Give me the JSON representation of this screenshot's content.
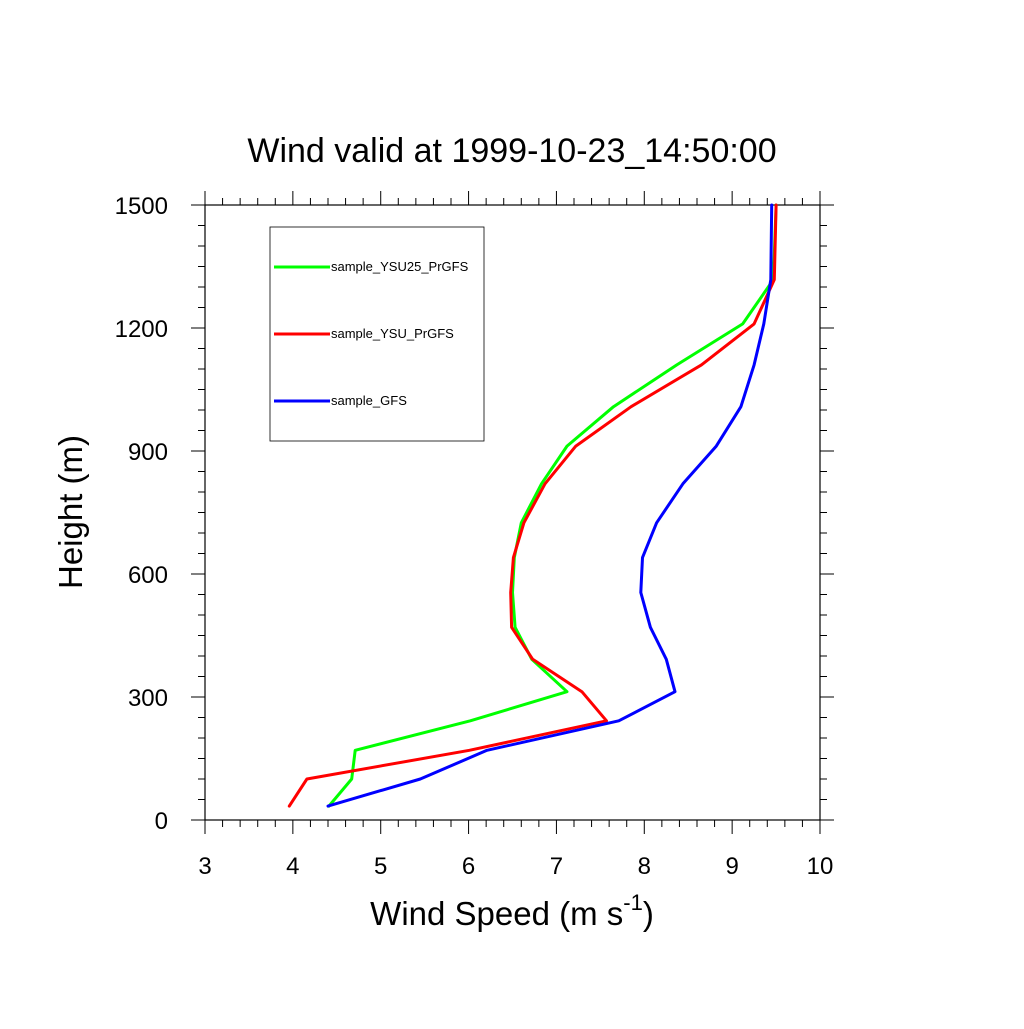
{
  "chart_data": {
    "type": "line",
    "title": "Wind valid at 1999-10-23_14:50:00",
    "xlabel": "Wind Speed (m s",
    "xlabel_exponent": "-1",
    "xlabel_suffix": ")",
    "ylabel": "Height (m)",
    "xlim": [
      3,
      10
    ],
    "ylim": [
      0,
      1500
    ],
    "x_ticks": [
      3,
      4,
      5,
      6,
      7,
      8,
      9,
      10
    ],
    "x_tick_labels": [
      "3",
      "4",
      "5",
      "6",
      "7",
      "8",
      "9",
      "10"
    ],
    "y_ticks": [
      0,
      300,
      600,
      900,
      1200,
      1500
    ],
    "y_tick_labels": [
      "0",
      "300",
      "600",
      "900",
      "1200",
      "1500"
    ],
    "grid": false,
    "legend_position": "top-left",
    "series": [
      {
        "name": "sample_YSU25_PrGFS",
        "color": "#00ff00",
        "points": [
          [
            4.41,
            34
          ],
          [
            4.67,
            100
          ],
          [
            4.71,
            170
          ],
          [
            6.02,
            242
          ],
          [
            7.12,
            313
          ],
          [
            6.72,
            392
          ],
          [
            6.53,
            470
          ],
          [
            6.5,
            555
          ],
          [
            6.52,
            640
          ],
          [
            6.6,
            725
          ],
          [
            6.83,
            820
          ],
          [
            7.12,
            912
          ],
          [
            7.65,
            1008
          ],
          [
            8.37,
            1110
          ],
          [
            9.12,
            1210
          ],
          [
            9.47,
            1318
          ],
          [
            9.5,
            1500
          ]
        ]
      },
      {
        "name": "sample_YSU_PrGFS",
        "color": "#ff0000",
        "points": [
          [
            3.96,
            34
          ],
          [
            4.16,
            100
          ],
          [
            6.01,
            170
          ],
          [
            7.57,
            242
          ],
          [
            7.29,
            313
          ],
          [
            6.73,
            392
          ],
          [
            6.49,
            470
          ],
          [
            6.48,
            555
          ],
          [
            6.51,
            640
          ],
          [
            6.63,
            725
          ],
          [
            6.87,
            820
          ],
          [
            7.22,
            912
          ],
          [
            7.85,
            1008
          ],
          [
            8.65,
            1110
          ],
          [
            9.25,
            1210
          ],
          [
            9.48,
            1318
          ],
          [
            9.5,
            1500
          ]
        ]
      },
      {
        "name": "sample_GFS",
        "color": "#0000ff",
        "points": [
          [
            4.4,
            34
          ],
          [
            5.45,
            100
          ],
          [
            6.21,
            170
          ],
          [
            7.71,
            242
          ],
          [
            8.35,
            313
          ],
          [
            8.25,
            392
          ],
          [
            8.07,
            470
          ],
          [
            7.96,
            555
          ],
          [
            7.98,
            640
          ],
          [
            8.14,
            725
          ],
          [
            8.44,
            820
          ],
          [
            8.82,
            912
          ],
          [
            9.1,
            1008
          ],
          [
            9.25,
            1110
          ],
          [
            9.36,
            1210
          ],
          [
            9.44,
            1318
          ],
          [
            9.45,
            1500
          ]
        ]
      }
    ]
  }
}
